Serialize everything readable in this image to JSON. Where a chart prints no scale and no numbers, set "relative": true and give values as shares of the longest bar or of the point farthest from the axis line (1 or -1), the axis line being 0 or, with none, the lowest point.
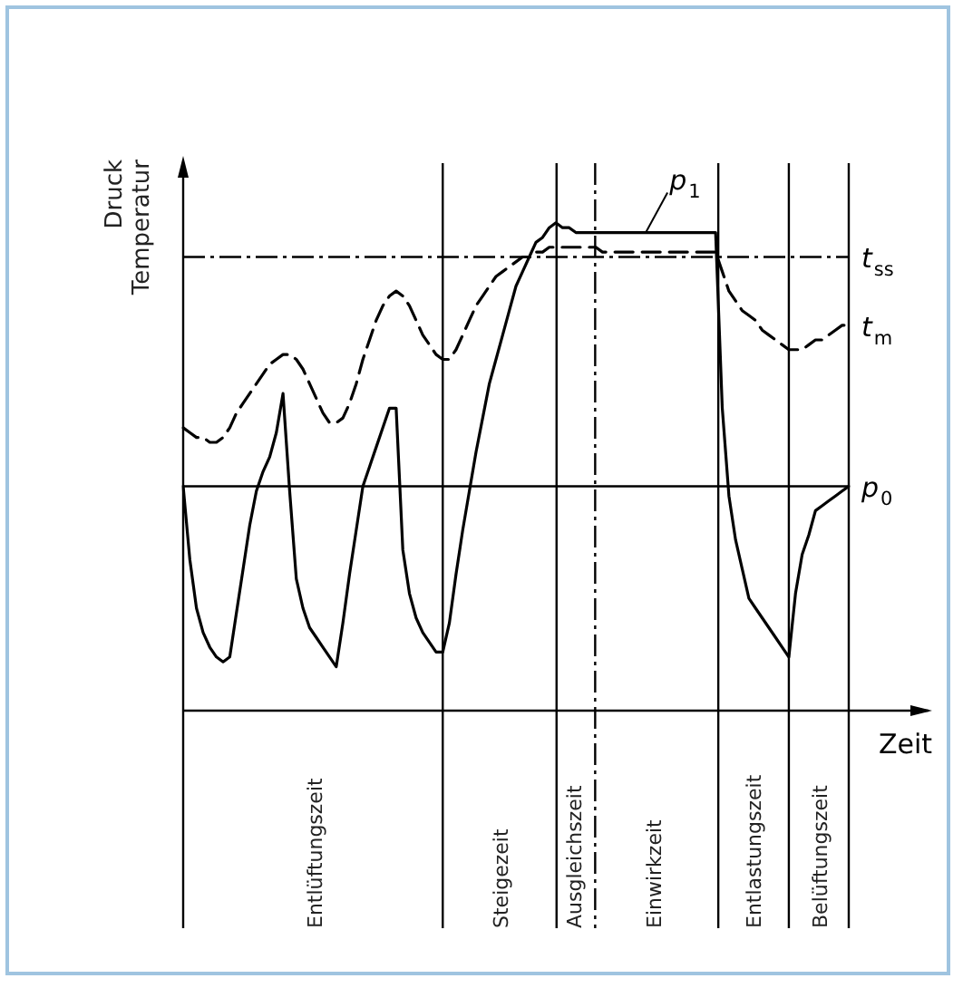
{
  "chart_data": {
    "type": "line",
    "relative": true,
    "ylabel": "Druck\nTemperatur",
    "xlabel": "Zeit",
    "tick_labels": "x",
    "marker": "none",
    "categories": [
      null,
      null,
      null,
      null,
      null,
      null,
      null,
      null,
      null,
      null,
      null,
      null,
      null,
      null,
      null,
      null,
      null,
      null,
      null,
      null,
      "Entlüftungszeit",
      null,
      null,
      null,
      null,
      null,
      null,
      null,
      null,
      null,
      null,
      null,
      null,
      null,
      null,
      null,
      null,
      null,
      null,
      null,
      null,
      null,
      null,
      null,
      null,
      null,
      null,
      null,
      "Steigezeit",
      null,
      null,
      null,
      null,
      null,
      null,
      null,
      null,
      null,
      null,
      "Ausgleichszeit",
      null,
      null,
      null,
      null,
      null,
      null,
      null,
      null,
      null,
      null,
      null,
      "Einwirkzeit",
      null,
      null,
      null,
      null,
      null,
      null,
      null,
      null,
      null,
      null,
      null,
      null,
      null,
      null,
      "Entlastungszeit",
      null,
      null,
      null,
      null,
      null,
      null,
      null,
      null,
      null,
      "Belüftungszeit",
      null,
      null,
      null,
      null
    ],
    "series": [
      {
        "color": "#000000",
        "line_style": "solid",
        "values": [
          0.46,
          0.31,
          0.21,
          0.16,
          0.13,
          0.11,
          0.1,
          0.11,
          0.2,
          0.29,
          0.38,
          0.45,
          0.49,
          0.52,
          0.57,
          0.65,
          0.45,
          0.27,
          0.21,
          0.17,
          0.15,
          0.13,
          0.11,
          0.09,
          0.18,
          0.28,
          0.37,
          0.46,
          0.5,
          0.54,
          0.58,
          0.62,
          0.62,
          0.33,
          0.24,
          0.19,
          0.16,
          0.14,
          0.12,
          0.12,
          0.18,
          0.28,
          0.37,
          0.45,
          0.53,
          0.6,
          0.67,
          0.72,
          0.77,
          0.82,
          0.87,
          0.9,
          0.93,
          0.96,
          0.97,
          0.99,
          1,
          0.99,
          0.99,
          0.98,
          0.98,
          0.98,
          0.98,
          0.98,
          0.98,
          0.98,
          0.98,
          0.98,
          0.98,
          0.98,
          0.98,
          0.98,
          0.98,
          0.98,
          0.98,
          0.98,
          0.98,
          0.98,
          0.98,
          0.98,
          0.98,
          0.62,
          0.44,
          0.35,
          0.29,
          0.23,
          0.21,
          0.19,
          0.17,
          0.15,
          0.13,
          0.11,
          0.24,
          0.32,
          0.36,
          0.41,
          0.42,
          0.43,
          0.44,
          0.45,
          0.46
        ]
      },
      {
        "name": "t$_{m}$",
        "color": "#000000",
        "line_style": "dashed",
        "values": [
          0.58,
          0.57,
          0.56,
          0.56,
          0.55,
          0.55,
          0.56,
          0.58,
          0.61,
          0.63,
          0.65,
          0.67,
          0.69,
          0.71,
          0.72,
          0.73,
          0.73,
          0.72,
          0.7,
          0.67,
          0.64,
          0.61,
          0.59,
          0.59,
          0.6,
          0.63,
          0.67,
          0.72,
          0.76,
          0.8,
          0.83,
          0.85,
          0.86,
          0.85,
          0.83,
          0.8,
          0.77,
          0.75,
          0.73,
          0.72,
          0.72,
          0.74,
          0.77,
          0.8,
          0.83,
          0.85,
          0.87,
          0.89,
          0.9,
          0.91,
          0.92,
          0.93,
          0.93,
          0.94,
          0.94,
          0.95,
          0.95,
          0.95,
          0.95,
          0.95,
          0.95,
          0.95,
          0.95,
          0.94,
          0.94,
          0.94,
          0.94,
          0.94,
          0.94,
          0.94,
          0.94,
          0.94,
          0.94,
          0.94,
          0.94,
          0.94,
          0.94,
          0.94,
          0.94,
          0.94,
          0.94,
          0.9,
          0.86,
          0.84,
          0.82,
          0.81,
          0.8,
          0.78,
          0.77,
          0.76,
          0.75,
          0.74,
          0.74,
          0.74,
          0.75,
          0.76,
          0.76,
          0.77,
          0.78,
          0.79,
          0.79
        ]
      }
    ],
    "ref_lines": [
      {
        "axis": "y",
        "value": 0.93,
        "label": "t$_{ss}$",
        "line_style": "dashed"
      },
      {
        "axis": "y",
        "value": 0.46,
        "label": "p$_{0}$",
        "line_style": "solid"
      }
    ],
    "annotations": [
      {
        "text": "p$_{1}$",
        "y": 0.98
      }
    ]
  }
}
